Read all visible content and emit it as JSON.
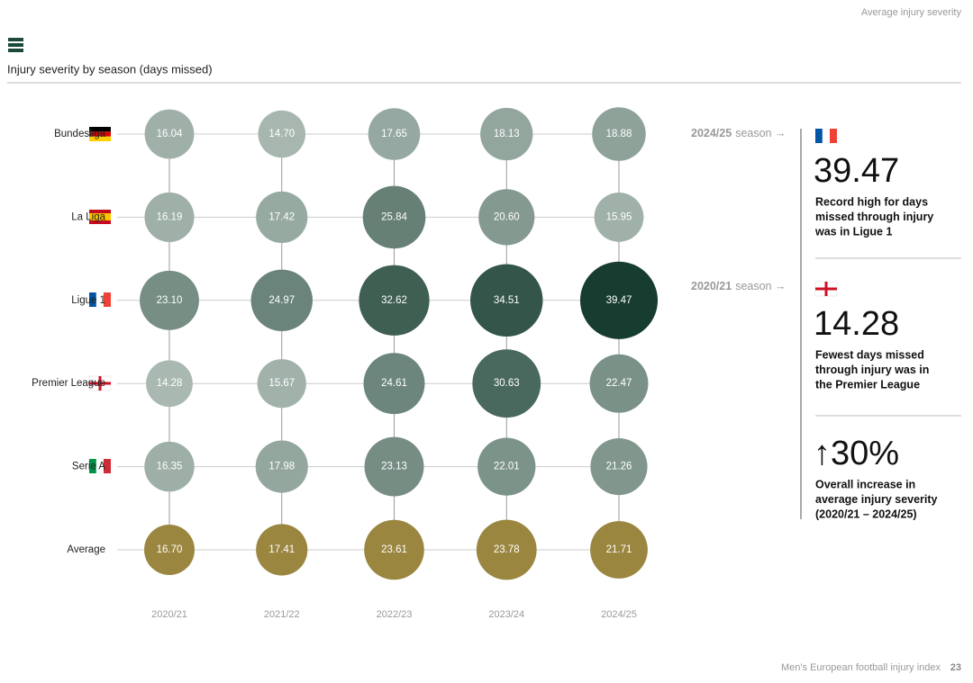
{
  "header": {
    "section": "Average injury severity"
  },
  "chart_data": {
    "type": "bubble",
    "title": "Injury severity by season (days missed)",
    "categories": [
      "2020/21",
      "2021/22",
      "2022/23",
      "2023/24",
      "2024/25"
    ],
    "color_scale": [
      "#a9b9b2",
      "#173d30"
    ],
    "series": [
      {
        "name": "Bundesliga",
        "values": [
          16.04,
          14.7,
          17.65,
          18.13,
          18.88
        ],
        "value_labels": [
          "16.04",
          "14.70",
          "17.65",
          "18.13",
          "18.88"
        ]
      },
      {
        "name": "La Liga",
        "values": [
          16.19,
          17.42,
          25.84,
          20.6,
          15.95
        ],
        "value_labels": [
          "16.19",
          "17.42",
          "25.84",
          "20.60",
          "15.95"
        ]
      },
      {
        "name": "Ligue 1",
        "values": [
          23.1,
          24.97,
          32.62,
          34.51,
          39.47
        ],
        "value_labels": [
          "23.10",
          "24.97",
          "32.62",
          "34.51",
          "39.47"
        ]
      },
      {
        "name": "Premier League",
        "values": [
          14.28,
          15.67,
          24.61,
          30.63,
          22.47
        ],
        "value_labels": [
          "14.28",
          "15.67",
          "24.61",
          "30.63",
          "22.47"
        ]
      },
      {
        "name": "Serie A",
        "values": [
          16.35,
          17.98,
          23.13,
          22.01,
          21.26
        ],
        "value_labels": [
          "16.35",
          "17.98",
          "23.13",
          "22.01",
          "21.26"
        ]
      },
      {
        "name": "Average",
        "color": "#9b8640",
        "values": [
          16.7,
          17.41,
          23.61,
          23.78,
          21.71
        ],
        "value_labels": [
          "16.70",
          "17.41",
          "23.61",
          "23.78",
          "21.71"
        ]
      }
    ]
  },
  "panel": {
    "items": [
      {
        "season": "2024/25",
        "suffix": "season →",
        "stat": "39.47",
        "lines": [
          "Record high for days",
          "missed through injury",
          "was in Ligue 1"
        ]
      },
      {
        "season": "2020/21",
        "suffix": "season →",
        "stat": "14.28",
        "lines": [
          "Fewest days missed",
          "through injury was in",
          "the Premier League"
        ]
      },
      {
        "stat": "↑30%",
        "lines": [
          "Overall increase in",
          "average injury severity",
          "(2020/21 – 2024/25)"
        ]
      }
    ]
  },
  "footer": {
    "title": "Men's European football injury index",
    "page": "23"
  }
}
